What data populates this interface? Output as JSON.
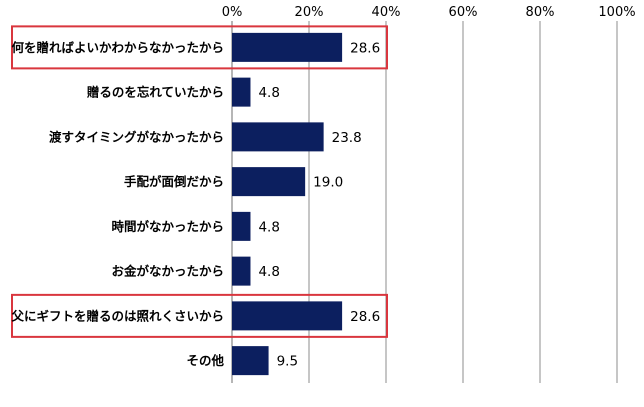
{
  "chart_data": {
    "type": "bar",
    "orientation": "horizontal",
    "categories": [
      "何を贈ればよいかわからなかったから",
      "贈るのを忘れていたから",
      "渡すタイミングがなかったから",
      "手配が面倒だから",
      "時間がなかったから",
      "お金がなかったから",
      "父にギフトを贈るのは照れくさいから",
      "その他"
    ],
    "values": [
      28.6,
      4.8,
      23.8,
      19.0,
      4.8,
      4.8,
      28.6,
      9.5
    ],
    "value_labels": [
      "28.6",
      "4.8",
      "23.8",
      "19.0",
      "4.8",
      "4.8",
      "28.6",
      "9.5"
    ],
    "xlim": [
      0,
      100
    ],
    "x_ticks": [
      "0%",
      "20%",
      "40%",
      "60%",
      "80%",
      "100%"
    ],
    "x_tick_values": [
      0,
      20,
      40,
      60,
      80,
      100
    ],
    "xaxis_position": "top",
    "grid": true,
    "highlighted_categories": [
      0,
      6
    ],
    "colors": {
      "bar": "#0c1f5f",
      "grid": "#8c8c8c",
      "highlight_border": "#d9363e",
      "text": "#000000"
    }
  }
}
